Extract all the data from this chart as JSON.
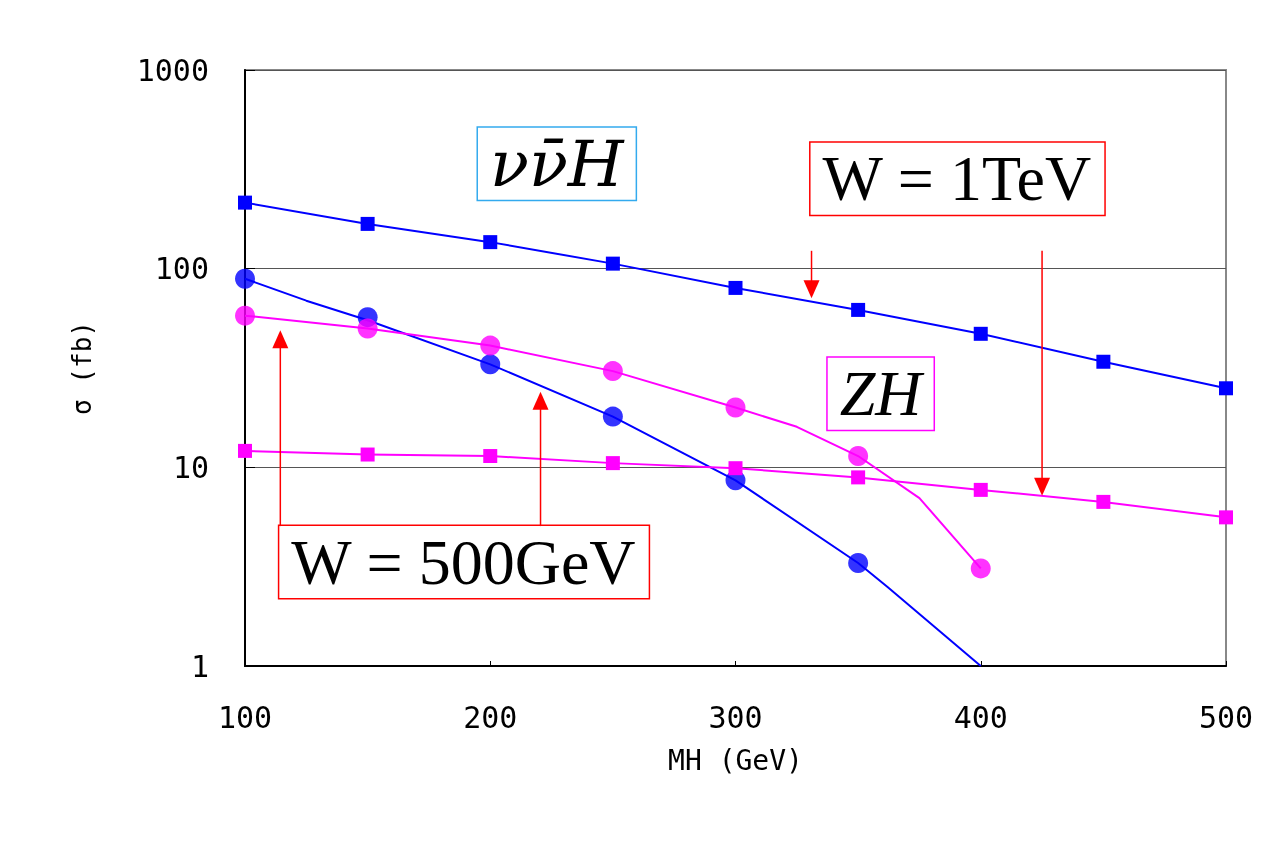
{
  "chart_data": {
    "type": "line",
    "xlabel": "MH (GeV)",
    "ylabel": "σ (fb)",
    "log": "y",
    "xlim": [
      100,
      500
    ],
    "xticks": [
      100,
      200,
      300,
      400,
      500
    ],
    "ylim": [
      1,
      1000
    ],
    "yticks": [
      1,
      10,
      100,
      1000
    ],
    "grid": "y",
    "series": [
      {
        "marker": "square",
        "color": "#0000ff",
        "x": [
          100,
          150,
          200,
          250,
          300,
          350,
          400,
          450,
          500
        ],
        "values": [
          215,
          168,
          136,
          106,
          80,
          62,
          47,
          34,
          25
        ]
      },
      {
        "type": "scatter",
        "marker": "circle",
        "color": "#0000ff",
        "x": [
          100,
          150,
          200,
          250,
          300,
          350
        ],
        "values": [
          89,
          57,
          33,
          18,
          8.6,
          3.3
        ]
      },
      {
        "marker": "none",
        "color": "#0000ff",
        "x": [
          100,
          125,
          150,
          200,
          250,
          300,
          350,
          362,
          400
        ],
        "values": [
          89,
          69,
          55,
          33,
          18,
          8.6,
          3.3,
          2.5,
          1
        ]
      },
      {
        "marker": "square",
        "color": "#ff00ff",
        "x": [
          100,
          150,
          200,
          250,
          300,
          350,
          400,
          450,
          500
        ],
        "values": [
          12.1,
          11.6,
          11.4,
          10.5,
          9.9,
          8.9,
          7.7,
          6.7,
          5.6
        ]
      },
      {
        "type": "scatter",
        "marker": "circle",
        "color": "#ff00ff",
        "x": [
          100,
          150,
          200,
          250,
          300,
          350,
          400
        ],
        "values": [
          58,
          50,
          41,
          30.5,
          20,
          11.4,
          3.1
        ]
      },
      {
        "marker": "none",
        "color": "#ff00ff",
        "x": [
          100,
          150,
          200,
          250,
          300,
          325,
          350,
          375,
          400
        ],
        "values": [
          58,
          50,
          41,
          30.5,
          20,
          16,
          11.4,
          7,
          3.1
        ]
      }
    ],
    "annotations": [
      "νν̄H",
      {
        "text": "W = 1TeV",
        "x": 331,
        "y": 71
      },
      "ZH",
      "W = 500GeV"
    ]
  }
}
